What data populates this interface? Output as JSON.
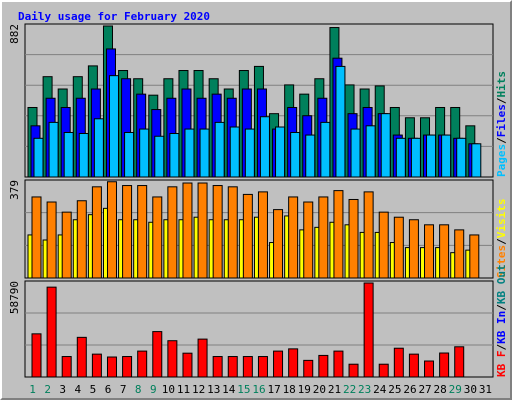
{
  "chart_data": {
    "type": "bar",
    "title": "Daily usage for February 2020",
    "categories": [
      "1",
      "2",
      "3",
      "4",
      "5",
      "6",
      "7",
      "8",
      "9",
      "10",
      "11",
      "12",
      "13",
      "14",
      "15",
      "16",
      "17",
      "18",
      "19",
      "20",
      "21",
      "22",
      "23",
      "24",
      "25",
      "26",
      "27",
      "28",
      "29",
      "30",
      "31"
    ],
    "weekend_days": [
      "1",
      "2",
      "8",
      "9",
      "15",
      "16",
      "22",
      "23",
      "29"
    ],
    "panels": [
      {
        "id": "hits-files-pages",
        "ymax": 882,
        "ymax_label": "882",
        "series": [
          {
            "name": "Hits",
            "color": "#00805c",
            "values": [
              406,
              586,
              514,
              586,
              649,
              882,
              622,
              574,
              478,
              574,
              622,
              622,
              574,
              514,
              622,
              646,
              370,
              538,
              484,
              574,
              873,
              538,
              514,
              532,
              406,
              346,
              346,
              406,
              406,
              299,
              null
            ]
          },
          {
            "name": "Files",
            "color": "#0000ff",
            "values": [
              299,
              460,
              406,
              460,
              514,
              748,
              574,
              484,
              394,
              460,
              514,
              460,
              484,
              460,
              514,
              514,
              280,
              406,
              358,
              460,
              694,
              370,
              406,
              370,
              245,
              226,
              245,
              245,
              226,
              194,
              null
            ]
          },
          {
            "name": "Pages",
            "color": "#00bfff",
            "values": [
              226,
              319,
              260,
              254,
              340,
              592,
              260,
              280,
              238,
              254,
              280,
              280,
              319,
              292,
              280,
              352,
              292,
              260,
              245,
              319,
              646,
              280,
              299,
              370,
              226,
              226,
              245,
              245,
              226,
              194,
              null
            ]
          }
        ]
      },
      {
        "id": "visits-sites",
        "ymax": 379,
        "ymax_label": "379",
        "series": [
          {
            "name": "Visits",
            "color": "#ffff00",
            "values": [
              170,
              150,
              170,
              230,
              250,
              275,
              230,
              230,
              220,
              230,
              230,
              240,
              230,
              230,
              230,
              240,
              140,
              245,
              190,
              200,
              220,
              210,
              180,
              180,
              140,
              120,
              120,
              120,
              100,
              110,
              null
            ]
          },
          {
            "name": "Sites",
            "color": "#ff8000",
            "values": [
              320,
              300,
              260,
              305,
              360,
              380,
              365,
              365,
              320,
              360,
              375,
              375,
              365,
              360,
              330,
              340,
              270,
              320,
              300,
              320,
              345,
              310,
              340,
              260,
              240,
              230,
              210,
              210,
              190,
              170,
              null
            ]
          }
        ]
      },
      {
        "id": "kbf-kbin-kbout",
        "ymax": 58790,
        "ymax_label": "58790",
        "series": [
          {
            "name": "KBytes Out",
            "color": "#008080",
            "values": [
              null,
              null,
              null,
              null,
              null,
              null,
              null,
              null,
              null,
              null,
              null,
              null,
              null,
              null,
              null,
              null,
              null,
              null,
              null,
              null,
              null,
              null,
              null,
              null,
              null,
              null,
              null,
              null,
              null,
              null,
              null
            ]
          },
          {
            "name": "KBytes In",
            "color": "#0000ff",
            "values": [
              null,
              null,
              null,
              null,
              null,
              null,
              null,
              null,
              null,
              null,
              null,
              null,
              null,
              null,
              null,
              null,
              null,
              null,
              null,
              null,
              null,
              null,
              null,
              null,
              null,
              null,
              null,
              null,
              null,
              null,
              null
            ]
          },
          {
            "name": "KBytes F",
            "color": "#ff0000",
            "values": [
              27000,
              56200,
              12800,
              24800,
              14300,
              12500,
              12800,
              16200,
              28400,
              22700,
              14900,
              23700,
              12800,
              12800,
              12800,
              12800,
              16200,
              17600,
              10400,
              13500,
              16200,
              8000,
              58790,
              8000,
              18000,
              14300,
              10000,
              15000,
              18900,
              null,
              null
            ]
          }
        ]
      }
    ],
    "legend": [
      {
        "label": "Pages",
        "color": "#00bfff"
      },
      {
        "label": "/",
        "color": "#000000"
      },
      {
        "label": "Files",
        "color": "#0000ff"
      },
      {
        "label": "/",
        "color": "#000000"
      },
      {
        "label": "Hits",
        "color": "#00805c"
      },
      {
        "label": "Sites",
        "color": "#ff8000"
      },
      {
        "label": "/",
        "color": "#000000"
      },
      {
        "label": "Visits",
        "color": "#ffff00"
      },
      {
        "label": "KB F",
        "color": "#ff0000"
      },
      {
        "label": "/",
        "color": "#000000"
      },
      {
        "label": "KB In",
        "color": "#0000ff"
      },
      {
        "label": "/",
        "color": "#000000"
      },
      {
        "label": "KB Out",
        "color": "#008080"
      }
    ],
    "colors": {
      "title": "#0000ff",
      "weekday_label": "#000000",
      "weekend_label": "#00805c",
      "panel_bg": "#c0c0c0",
      "gridline": "#808080"
    }
  }
}
